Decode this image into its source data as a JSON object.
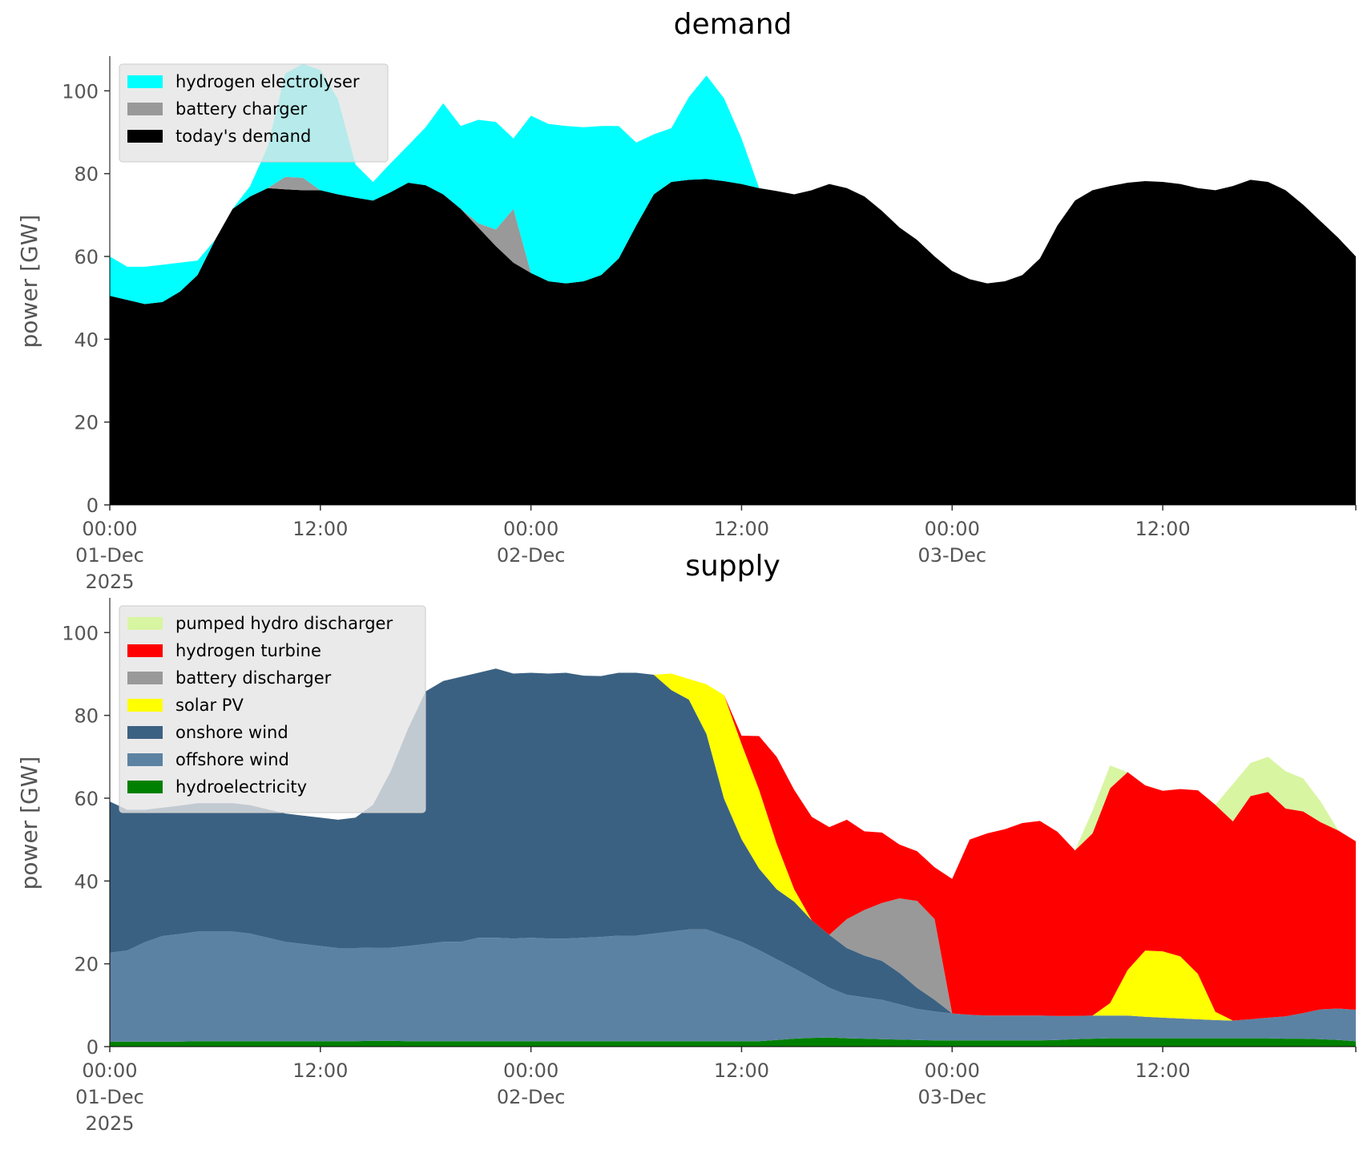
{
  "colors": {
    "hydrogen electrolyser": "#00ffff",
    "battery charger": "#999999",
    "today's demand": "#000000",
    "pumped hydro discharger": "#d8f5a2",
    "hydrogen turbine": "#ff0000",
    "battery discharger": "#999999",
    "solar PV": "#ffff00",
    "onshore wind": "#3b6182",
    "offshore wind": "#5c82a3",
    "hydroelectricity": "#008000"
  },
  "chart_data": [
    {
      "type": "area",
      "stacked": true,
      "title": "demand",
      "ylabel": "power [GW]",
      "xlabel": "",
      "ylim": [
        0,
        108
      ],
      "yticks": [
        0,
        20,
        40,
        60,
        80,
        100
      ],
      "grid": false,
      "legend_position": "top-left",
      "x_start": "2025-12-01 00:00",
      "x_step_hours": 1,
      "xticks": [
        {
          "hour": 0,
          "lines": [
            "00:00",
            "01-Dec",
            "2025"
          ]
        },
        {
          "hour": 12,
          "lines": [
            "12:00"
          ]
        },
        {
          "hour": 24,
          "lines": [
            "00:00",
            "02-Dec"
          ]
        },
        {
          "hour": 36,
          "lines": [
            "12:00"
          ]
        },
        {
          "hour": 48,
          "lines": [
            "00:00",
            "03-Dec"
          ]
        },
        {
          "hour": 60,
          "lines": [
            "12:00"
          ]
        },
        {
          "hour": 71,
          "lines": [
            ""
          ]
        }
      ],
      "series": [
        {
          "name": "today's demand",
          "values": [
            50.5,
            49.5,
            48.5,
            49,
            51.5,
            55.5,
            64,
            71.5,
            74.5,
            76.5,
            76.2,
            76,
            76,
            75,
            74.2,
            73.5,
            75.5,
            77.8,
            77.2,
            75,
            71.5,
            67,
            62.5,
            58.5,
            56,
            54,
            53.5,
            54,
            55.5,
            59.5,
            67.5,
            75,
            78,
            78.5,
            78.7,
            78.2,
            77.5,
            76.5,
            75.8,
            75,
            76,
            77.5,
            76.5,
            74.5,
            71,
            67,
            64,
            60,
            56.5,
            54.5,
            53.5,
            54,
            55.5,
            59.5,
            67.5,
            73.5,
            76,
            77,
            77.8,
            78.2,
            78,
            77.5,
            76.5,
            76,
            77,
            78.5,
            78,
            76,
            72.5,
            68.5,
            64.5,
            60
          ]
        },
        {
          "name": "battery charger",
          "values": [
            0,
            0,
            0,
            0,
            0,
            0,
            0,
            0,
            0,
            0,
            3,
            3,
            0,
            0,
            0,
            0,
            0,
            0,
            0,
            0,
            0,
            1,
            4,
            13,
            0,
            0,
            0,
            0,
            0,
            0,
            0,
            0,
            0,
            0,
            0,
            0,
            0,
            0,
            0,
            0,
            0,
            0,
            0,
            0,
            0,
            0,
            0,
            0,
            0,
            0,
            0,
            0,
            0,
            0,
            0,
            0,
            0,
            0,
            0,
            0,
            0,
            0,
            0,
            0,
            0,
            0,
            0,
            0,
            0,
            0,
            0,
            0
          ]
        },
        {
          "name": "hydrogen electrolyser",
          "values": [
            9.5,
            8,
            9,
            9,
            7,
            3.5,
            0,
            0,
            2.5,
            10,
            25,
            27.5,
            29,
            23,
            8,
            4.5,
            7,
            9,
            14,
            22,
            20,
            25,
            26,
            17,
            38,
            38,
            38,
            37.2,
            36,
            32,
            20,
            14.5,
            13,
            20,
            25,
            20,
            11,
            0,
            0,
            0,
            0,
            0,
            0,
            0,
            0,
            0,
            0,
            0,
            0,
            0,
            0,
            0,
            0,
            0,
            0,
            0,
            0,
            0,
            0,
            0,
            0,
            0,
            0,
            0,
            0,
            0,
            0,
            0,
            0,
            0,
            0,
            0
          ]
        }
      ]
    },
    {
      "type": "area",
      "stacked": true,
      "title": "supply",
      "ylabel": "power [GW]",
      "xlabel": "",
      "ylim": [
        0,
        108
      ],
      "yticks": [
        0,
        20,
        40,
        60,
        80,
        100
      ],
      "grid": false,
      "legend_position": "top-left",
      "x_start": "2025-12-01 00:00",
      "x_step_hours": 1,
      "xticks": [
        {
          "hour": 0,
          "lines": [
            "00:00",
            "01-Dec",
            "2025"
          ]
        },
        {
          "hour": 12,
          "lines": [
            "12:00"
          ]
        },
        {
          "hour": 24,
          "lines": [
            "00:00",
            "02-Dec"
          ]
        },
        {
          "hour": 36,
          "lines": [
            "12:00"
          ]
        },
        {
          "hour": 48,
          "lines": [
            "00:00",
            "03-Dec"
          ]
        },
        {
          "hour": 60,
          "lines": [
            "12:00"
          ]
        },
        {
          "hour": 71,
          "lines": [
            ""
          ]
        }
      ],
      "series": [
        {
          "name": "hydroelectricity",
          "values": [
            1.2,
            1.2,
            1.2,
            1.2,
            1.2,
            1.3,
            1.3,
            1.3,
            1.3,
            1.3,
            1.3,
            1.3,
            1.3,
            1.3,
            1.3,
            1.4,
            1.4,
            1.3,
            1.3,
            1.3,
            1.3,
            1.3,
            1.3,
            1.3,
            1.3,
            1.3,
            1.3,
            1.3,
            1.3,
            1.3,
            1.3,
            1.3,
            1.3,
            1.3,
            1.3,
            1.3,
            1.3,
            1.3,
            1.6,
            1.9,
            2.1,
            2.2,
            2.0,
            1.9,
            1.8,
            1.7,
            1.6,
            1.5,
            1.5,
            1.5,
            1.5,
            1.5,
            1.5,
            1.5,
            1.6,
            1.8,
            1.9,
            2.0,
            2.0,
            2.0,
            2.0,
            2.0,
            2.0,
            2.0,
            2.0,
            2.0,
            2.0,
            1.9,
            1.9,
            1.8,
            1.6,
            1.3
          ]
        },
        {
          "name": "offshore wind",
          "values": [
            21.5,
            22,
            24,
            25.5,
            26,
            26.5,
            26.5,
            26.5,
            26,
            25,
            24,
            23.5,
            23,
            22.5,
            22.5,
            22.5,
            22.5,
            23,
            23.5,
            24,
            24,
            25,
            25,
            24.8,
            25,
            24.8,
            24.8,
            25,
            25.2,
            25.5,
            25.5,
            26,
            26.5,
            27,
            27,
            25.5,
            24,
            22,
            19.5,
            17,
            14.5,
            12,
            10.5,
            10,
            9.5,
            8.5,
            7.5,
            7,
            6.5,
            6.2,
            6,
            6,
            6,
            6,
            5.8,
            5.6,
            5.6,
            5.5,
            5.5,
            5.2,
            5,
            4.8,
            4.6,
            4.4,
            4.3,
            4.6,
            5,
            5.4,
            6.2,
            7.2,
            7.6,
            7.6
          ]
        },
        {
          "name": "onshore wind",
          "values": [
            36.5,
            34,
            32,
            31,
            31,
            31,
            31,
            31,
            31,
            31,
            31,
            31,
            31,
            31,
            31.5,
            34.5,
            42.5,
            52.5,
            61,
            63,
            64,
            64,
            65,
            64,
            64,
            64,
            64.2,
            63.3,
            63,
            63.5,
            63.5,
            62.5,
            58.3,
            55.5,
            47.2,
            33.1,
            24.8,
            19.7,
            16.9,
            16.1,
            13.9,
            12.8,
            11.3,
            10.1,
            9.4,
            7.6,
            5.1,
            2.8,
            0,
            0,
            0,
            0,
            0,
            0,
            0,
            0,
            0,
            0,
            0,
            0,
            0,
            0,
            0,
            0,
            0,
            0,
            0,
            0,
            0,
            0,
            0,
            0
          ]
        },
        {
          "name": "solar PV",
          "values": [
            0,
            0,
            0,
            0,
            0,
            0,
            0,
            0,
            0,
            0,
            0,
            0,
            0,
            0,
            0,
            0,
            0,
            0,
            0,
            0,
            0,
            0,
            0,
            0,
            0,
            0,
            0,
            0,
            0,
            0,
            0,
            0,
            4,
            5,
            12,
            25,
            23,
            19,
            11,
            3,
            0,
            0,
            0,
            0,
            0,
            0,
            0,
            0,
            0,
            0,
            0,
            0,
            0,
            0,
            0,
            0,
            0,
            3,
            11,
            16,
            16,
            15,
            11,
            2,
            0,
            0,
            0,
            0,
            0,
            0,
            0,
            0
          ]
        },
        {
          "name": "battery discharger",
          "values": [
            0,
            0,
            0,
            0,
            0,
            0,
            0,
            0,
            0,
            0,
            0,
            0,
            0,
            0,
            0,
            0,
            0,
            0,
            0,
            0,
            0,
            0,
            0,
            0,
            0,
            0,
            0,
            0,
            0,
            0,
            0,
            0,
            0,
            0,
            0,
            0,
            0,
            0,
            0,
            0,
            0,
            0,
            7,
            11,
            14,
            18,
            21,
            19.5,
            0,
            0,
            0,
            0,
            0,
            0,
            0,
            0,
            0,
            0,
            0,
            0,
            0,
            0,
            0,
            0,
            0,
            0,
            0,
            0,
            0,
            0,
            0,
            0
          ]
        },
        {
          "name": "hydrogen turbine",
          "values": [
            0,
            0,
            0,
            0,
            0,
            0,
            0,
            0,
            0,
            0,
            0,
            0,
            0,
            0,
            0,
            0,
            0,
            0,
            0,
            0,
            0,
            0,
            0,
            0,
            0,
            0,
            0,
            0,
            0,
            0,
            0,
            0,
            0,
            0,
            0,
            0,
            2,
            13,
            21,
            24,
            25,
            26,
            24,
            19,
            17,
            13,
            12,
            12.5,
            32.5,
            42.3,
            44,
            45,
            46.5,
            47,
            44.5,
            40,
            44,
            51.9,
            47.8,
            39.9,
            38.8,
            40.4,
            44.3,
            50,
            48.1,
            53.9,
            54.5,
            50.2,
            48.7,
            45.2,
            43,
            40.7
          ]
        },
        {
          "name": "pumped hydro discharger",
          "values": [
            0,
            0,
            0,
            0,
            0,
            0,
            0,
            0,
            0,
            0,
            0,
            0,
            0,
            0,
            0,
            0,
            0,
            0,
            0,
            0,
            0,
            0,
            0,
            0,
            0,
            0,
            0,
            0,
            0,
            0,
            0,
            0,
            0,
            0,
            0,
            0,
            0,
            0,
            0,
            0,
            0,
            0,
            0,
            0,
            0,
            0,
            0,
            0,
            0,
            0,
            0,
            0,
            0,
            0,
            0,
            0,
            5.5,
            5.5,
            0,
            0,
            0,
            0,
            0,
            0,
            9,
            8,
            8.5,
            9,
            8,
            5,
            0,
            0
          ]
        }
      ]
    }
  ]
}
